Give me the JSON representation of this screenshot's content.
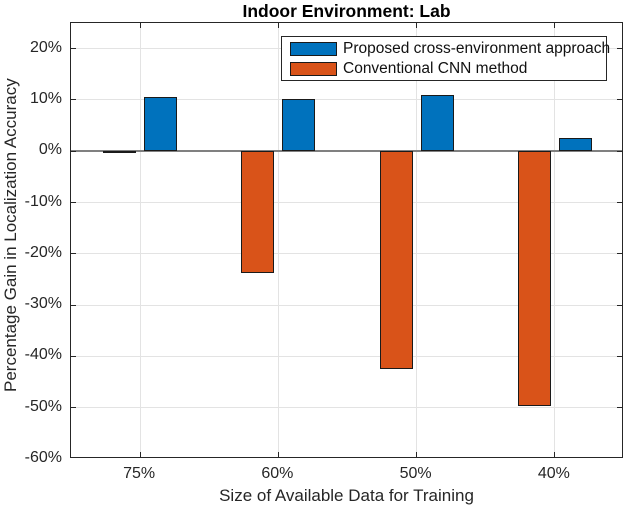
{
  "chart_data": {
    "type": "bar",
    "title": "Indoor Environment: Lab",
    "xlabel": "Size of Available Data for Training",
    "ylabel": "Percentage Gain in Localization Accuracy",
    "categories": [
      "75%",
      "60%",
      "50%",
      "40%"
    ],
    "series": [
      {
        "name": "Proposed cross-environment approach",
        "slug": "proposed",
        "color": "#0072bd",
        "edge_color": "#1a1a1a",
        "group_position": "right",
        "values": [
          10.6,
          10.2,
          11.0,
          2.6
        ]
      },
      {
        "name": "Conventional CNN method",
        "slug": "conventional",
        "color": "#d95319",
        "edge_color": "#1a1a1a",
        "group_position": "left",
        "values": [
          0.1,
          -23.8,
          -42.5,
          -49.6
        ]
      }
    ],
    "ylim": [
      -60,
      25
    ],
    "yticks": {
      "values": [
        20,
        10,
        0,
        -10,
        -20,
        -30,
        -40,
        -50,
        -60
      ],
      "labels": [
        "20%",
        "10%",
        "0%",
        "-10%",
        "-20%",
        "-30%",
        "-40%",
        "-50%",
        "-60%"
      ]
    },
    "grid": true,
    "baseline_value": 0,
    "legend": {
      "position": "northeast",
      "entries": [
        {
          "label": "Proposed cross-environment approach",
          "color": "#0072bd",
          "slug": "proposed"
        },
        {
          "label": "Conventional CNN method",
          "color": "#d95319",
          "slug": "conventional"
        }
      ]
    },
    "colors": {
      "grid": "#e3e3e3",
      "baseline": "#808080",
      "axis": "#262626",
      "tick_text": "#262626",
      "title_text": "#000000"
    }
  }
}
